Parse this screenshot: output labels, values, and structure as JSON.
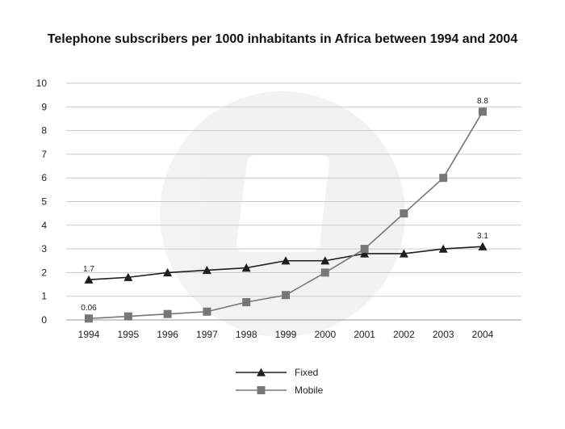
{
  "chart_data": {
    "type": "line",
    "title": "Telephone subscribers per 1000 inhabitants in Africa between 1994 and 2004",
    "xlabel": "",
    "ylabel": "",
    "categories": [
      "1994",
      "1995",
      "1996",
      "1997",
      "1998",
      "1999",
      "2000",
      "2001",
      "2002",
      "2003",
      "2004"
    ],
    "ylim": [
      0,
      10
    ],
    "yticks": [
      "0",
      "1",
      "2",
      "3",
      "4",
      "5",
      "6",
      "7",
      "8",
      "9",
      "10"
    ],
    "grid": true,
    "legend_position": "bottom-center",
    "series": [
      {
        "name": "Fixed",
        "marker": "triangle",
        "color": "#1e1e1e",
        "values": [
          1.7,
          1.8,
          2.0,
          2.1,
          2.2,
          2.5,
          2.5,
          2.8,
          2.8,
          3.0,
          3.1
        ]
      },
      {
        "name": "Mobile",
        "marker": "square",
        "color": "#777777",
        "values": [
          0.06,
          0.15,
          0.25,
          0.35,
          0.75,
          1.05,
          2.0,
          3.0,
          4.5,
          6.0,
          8.8
        ]
      }
    ],
    "annotations": [
      {
        "series": 0,
        "index": 0,
        "text": "1.7"
      },
      {
        "series": 0,
        "index": 10,
        "text": "3.1"
      },
      {
        "series": 1,
        "index": 0,
        "text": "0.06"
      },
      {
        "series": 1,
        "index": 10,
        "text": "8.8"
      }
    ]
  }
}
